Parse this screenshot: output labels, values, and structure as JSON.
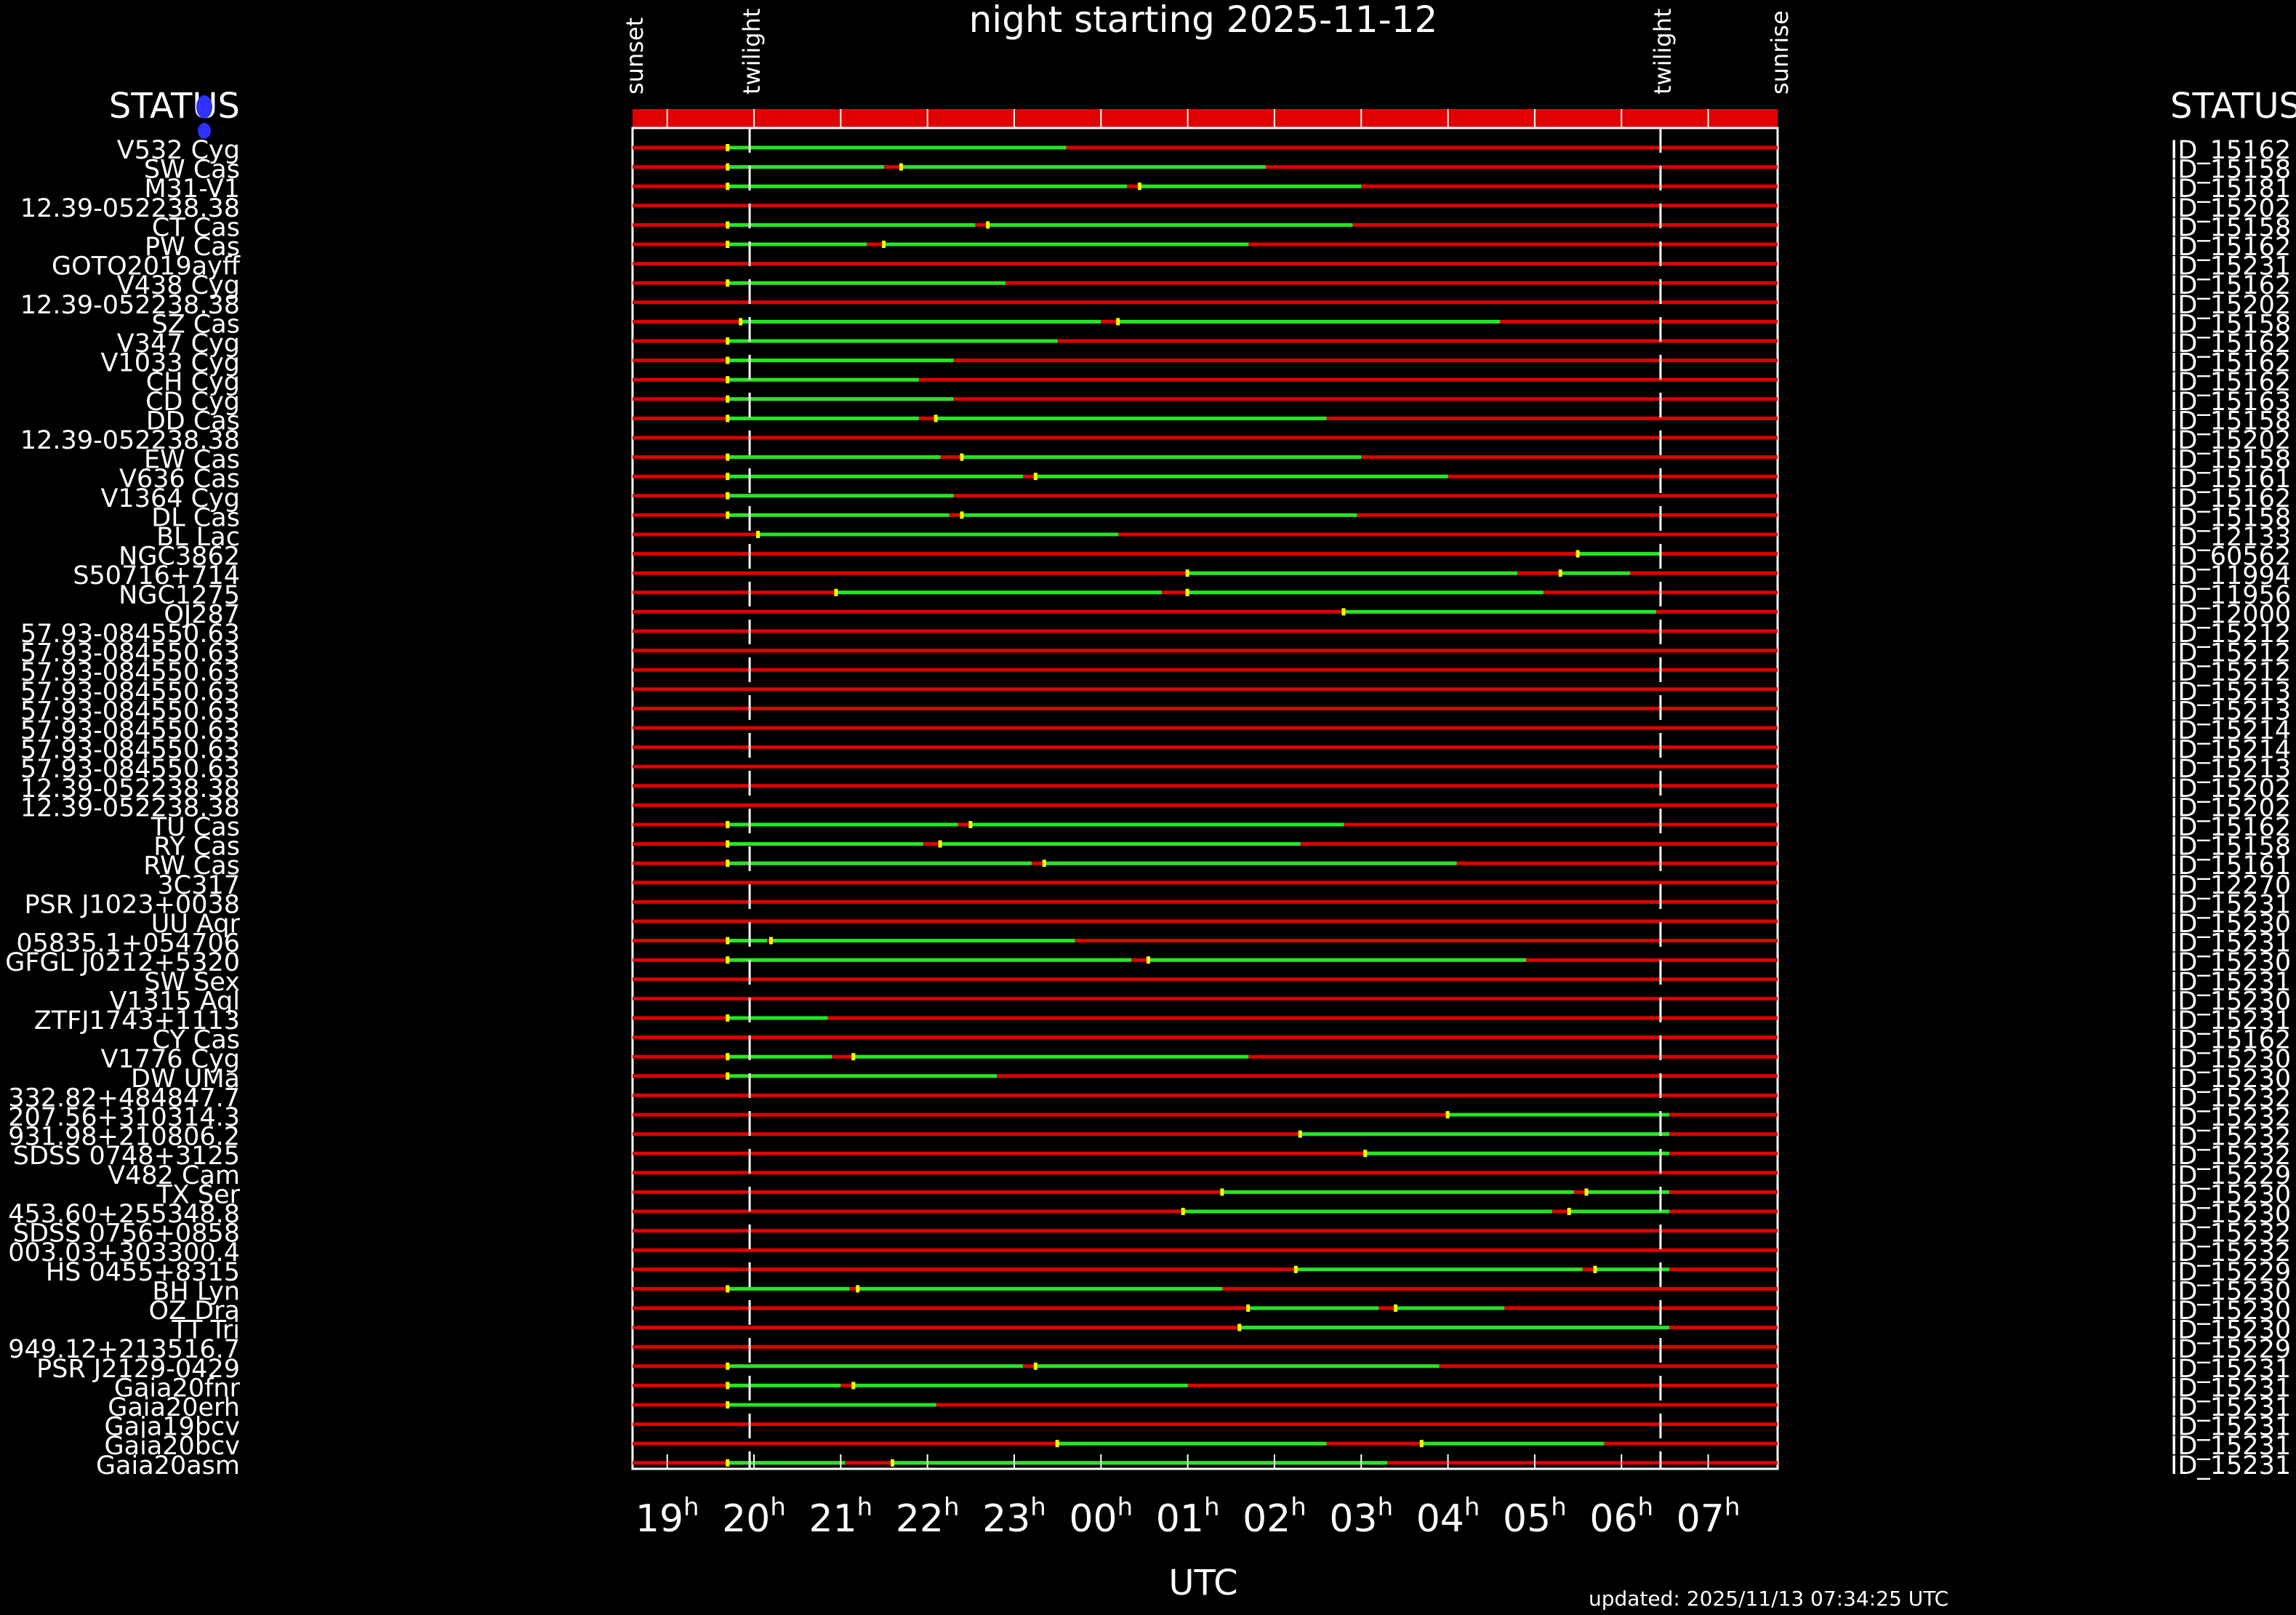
{
  "chart_data": {
    "type": "timeline",
    "title": "night starting 2025-11-12",
    "xlabel": "UTC",
    "updated": "updated: 2025/11/13 07:34:25 UTC",
    "status_left_header": "STATUS",
    "status_right_header": "STATUS",
    "x_range_hours_utc": [
      18.6,
      31.8
    ],
    "events": [
      {
        "label": "sunset",
        "hour": 18.6
      },
      {
        "label": "twilight",
        "hour": 19.95
      },
      {
        "label": "twilight",
        "hour": 30.45
      },
      {
        "label": "sunrise",
        "hour": 31.8
      }
    ],
    "ticks": [
      {
        "base": "19",
        "sup": "h",
        "hour": 19
      },
      {
        "base": "20",
        "sup": "h",
        "hour": 20
      },
      {
        "base": "21",
        "sup": "h",
        "hour": 21
      },
      {
        "base": "22",
        "sup": "h",
        "hour": 22
      },
      {
        "base": "23",
        "sup": "h",
        "hour": 23
      },
      {
        "base": "00",
        "sup": "h",
        "hour": 24
      },
      {
        "base": "01",
        "sup": "h",
        "hour": 25
      },
      {
        "base": "02",
        "sup": "h",
        "hour": 26
      },
      {
        "base": "03",
        "sup": "h",
        "hour": 27
      },
      {
        "base": "04",
        "sup": "h",
        "hour": 28
      },
      {
        "base": "05",
        "sup": "h",
        "hour": 29
      },
      {
        "base": "06",
        "sup": "h",
        "hour": 30
      },
      {
        "base": "07",
        "sup": "h",
        "hour": 31
      }
    ],
    "colors": {
      "unobservable": "#e00000",
      "observable": "#22e822",
      "marker": "#ffff00",
      "status_icon": "#3030ff"
    },
    "targets": [
      {
        "name": "V532 Cyg",
        "id": "ID_15162",
        "obs": [
          [
            19.7,
            23.6
          ]
        ]
      },
      {
        "name": "SW Cas",
        "id": "ID_15158",
        "obs": [
          [
            19.7,
            21.5
          ],
          [
            21.7,
            25.9
          ]
        ]
      },
      {
        "name": "M31-V1",
        "id": "ID_15181",
        "obs": [
          [
            19.7,
            24.3
          ],
          [
            24.45,
            27.0
          ]
        ]
      },
      {
        "name": "12.39-052238.38",
        "id": "ID_15202",
        "obs": []
      },
      {
        "name": "CT Cas",
        "id": "ID_15158",
        "obs": [
          [
            19.7,
            22.55
          ],
          [
            22.7,
            26.9
          ]
        ]
      },
      {
        "name": "PW Cas",
        "id": "ID_15162",
        "obs": [
          [
            19.7,
            21.3
          ],
          [
            21.5,
            25.7
          ]
        ]
      },
      {
        "name": "GOTO2019ayff",
        "id": "ID_15231",
        "obs": []
      },
      {
        "name": "V438 Cyg",
        "id": "ID_15162",
        "obs": [
          [
            19.7,
            22.9
          ]
        ]
      },
      {
        "name": "12.39-052238.38",
        "id": "ID_15202",
        "obs": []
      },
      {
        "name": "SZ Cas",
        "id": "ID_15158",
        "obs": [
          [
            19.85,
            24.0
          ],
          [
            24.2,
            28.6
          ]
        ]
      },
      {
        "name": "V347 Cyg",
        "id": "ID_15162",
        "obs": [
          [
            19.7,
            23.5
          ]
        ]
      },
      {
        "name": "V1033 Cyg",
        "id": "ID_15162",
        "obs": [
          [
            19.7,
            22.3
          ]
        ]
      },
      {
        "name": "CH Cyg",
        "id": "ID_15162",
        "obs": [
          [
            19.7,
            21.9
          ]
        ]
      },
      {
        "name": "CD Cyg",
        "id": "ID_15163",
        "obs": [
          [
            19.7,
            22.3
          ]
        ]
      },
      {
        "name": "DD Cas",
        "id": "ID_15158",
        "obs": [
          [
            19.7,
            21.9
          ],
          [
            22.1,
            26.6
          ]
        ]
      },
      {
        "name": "12.39-052238.38",
        "id": "ID_15202",
        "obs": []
      },
      {
        "name": "EW Cas",
        "id": "ID_15158",
        "obs": [
          [
            19.7,
            22.15
          ],
          [
            22.4,
            27.0
          ]
        ]
      },
      {
        "name": "V636 Cas",
        "id": "ID_15161",
        "obs": [
          [
            19.7,
            23.1
          ],
          [
            23.25,
            28.0
          ]
        ]
      },
      {
        "name": "V1364 Cyg",
        "id": "ID_15162",
        "obs": [
          [
            19.7,
            22.3
          ]
        ]
      },
      {
        "name": "DL Cas",
        "id": "ID_15158",
        "obs": [
          [
            19.7,
            22.25
          ],
          [
            22.4,
            26.95
          ]
        ]
      },
      {
        "name": "BL Lac",
        "id": "ID_12133",
        "obs": [
          [
            20.05,
            24.2
          ]
        ]
      },
      {
        "name": "NGC3862",
        "id": "ID_60562",
        "obs": [
          [
            29.5,
            30.45
          ]
        ]
      },
      {
        "name": "S50716+714",
        "id": "ID_11994",
        "obs": [
          [
            25.0,
            28.8
          ],
          [
            29.3,
            30.1
          ]
        ]
      },
      {
        "name": "NGC1275",
        "id": "ID_11956",
        "obs": [
          [
            20.95,
            24.7
          ],
          [
            25.0,
            29.1
          ]
        ]
      },
      {
        "name": "OJ287",
        "id": "ID_12000",
        "obs": [
          [
            26.8,
            30.4
          ]
        ]
      },
      {
        "name": "57.93-084550.63",
        "id": "ID_15212",
        "obs": []
      },
      {
        "name": "57.93-084550.63",
        "id": "ID_15212",
        "obs": []
      },
      {
        "name": "57.93-084550.63",
        "id": "ID_15212",
        "obs": []
      },
      {
        "name": "57.93-084550.63",
        "id": "ID_15213",
        "obs": []
      },
      {
        "name": "57.93-084550.63",
        "id": "ID_15213",
        "obs": []
      },
      {
        "name": "57.93-084550.63",
        "id": "ID_15214",
        "obs": []
      },
      {
        "name": "57.93-084550.63",
        "id": "ID_15214",
        "obs": []
      },
      {
        "name": "57.93-084550.63",
        "id": "ID_15213",
        "obs": []
      },
      {
        "name": "12.39-052238.38",
        "id": "ID_15202",
        "obs": []
      },
      {
        "name": "12.39-052238.38",
        "id": "ID_15202",
        "obs": []
      },
      {
        "name": "TU Cas",
        "id": "ID_15162",
        "obs": [
          [
            19.7,
            22.35
          ],
          [
            22.5,
            26.8
          ]
        ]
      },
      {
        "name": "RY Cas",
        "id": "ID_15158",
        "obs": [
          [
            19.7,
            21.95
          ],
          [
            22.15,
            26.3
          ]
        ]
      },
      {
        "name": "RW Cas",
        "id": "ID_15161",
        "obs": [
          [
            19.7,
            23.2
          ],
          [
            23.35,
            28.1
          ]
        ]
      },
      {
        "name": "3C317",
        "id": "ID_12270",
        "obs": []
      },
      {
        "name": "PSR J1023+0038",
        "id": "ID_15231",
        "obs": []
      },
      {
        "name": "UU Aqr",
        "id": "ID_15230",
        "obs": []
      },
      {
        "name": "05835.1+054706",
        "id": "ID_15231",
        "obs": [
          [
            19.7,
            20.15
          ],
          [
            20.2,
            23.7
          ]
        ]
      },
      {
        "name": "GFGL J0212+5320",
        "id": "ID_15230",
        "obs": [
          [
            19.7,
            24.35
          ],
          [
            24.55,
            28.9
          ]
        ]
      },
      {
        "name": "SW Sex",
        "id": "ID_15231",
        "obs": []
      },
      {
        "name": "V1315 Aql",
        "id": "ID_15230",
        "obs": []
      },
      {
        "name": "ZTFJ1743+1113",
        "id": "ID_15231",
        "obs": [
          [
            19.7,
            20.85
          ]
        ]
      },
      {
        "name": "CY Cas",
        "id": "ID_15162",
        "obs": []
      },
      {
        "name": "V1776 Cyg",
        "id": "ID_15230",
        "obs": [
          [
            19.7,
            20.9
          ],
          [
            21.15,
            25.7
          ]
        ]
      },
      {
        "name": "DW UMa",
        "id": "ID_15230",
        "obs": [
          [
            19.7,
            22.8
          ]
        ]
      },
      {
        "name": "332.82+484847.7",
        "id": "ID_15232",
        "obs": []
      },
      {
        "name": "207.56+310314.3",
        "id": "ID_15232",
        "obs": [
          [
            28.0,
            30.55
          ]
        ]
      },
      {
        "name": "931.98+210806.2",
        "id": "ID_15232",
        "obs": [
          [
            26.3,
            30.55
          ]
        ]
      },
      {
        "name": "SDSS 0748+3125",
        "id": "ID_15232",
        "obs": [
          [
            27.05,
            30.55
          ]
        ]
      },
      {
        "name": "V482 Cam",
        "id": "ID_15229",
        "obs": []
      },
      {
        "name": "TX Ser",
        "id": "ID_15230",
        "obs": [
          [
            25.4,
            29.45
          ],
          [
            29.6,
            30.55
          ]
        ]
      },
      {
        "name": "453.60+255348.8",
        "id": "ID_15230",
        "obs": [
          [
            24.95,
            29.2
          ],
          [
            29.4,
            30.55
          ]
        ]
      },
      {
        "name": "SDSS 0756+0858",
        "id": "ID_15232",
        "obs": []
      },
      {
        "name": "003.03+303300.4",
        "id": "ID_15232",
        "obs": []
      },
      {
        "name": "HS 0455+8315",
        "id": "ID_15229",
        "obs": [
          [
            26.25,
            29.55
          ],
          [
            29.7,
            30.55
          ]
        ]
      },
      {
        "name": "BH Lyn",
        "id": "ID_15230",
        "obs": [
          [
            19.7,
            21.1
          ],
          [
            21.2,
            25.4
          ]
        ]
      },
      {
        "name": "OZ Dra",
        "id": "ID_15230",
        "obs": [
          [
            25.7,
            27.2
          ],
          [
            27.4,
            28.65
          ]
        ]
      },
      {
        "name": "TT Tri",
        "id": "ID_15230",
        "obs": [
          [
            25.6,
            30.55
          ]
        ]
      },
      {
        "name": "949.12+213516.7",
        "id": "ID_15229",
        "obs": []
      },
      {
        "name": "PSR J2129-0429",
        "id": "ID_15231",
        "obs": [
          [
            19.7,
            23.1
          ],
          [
            23.25,
            27.9
          ]
        ]
      },
      {
        "name": "Gaia20fnr",
        "id": "ID_15231",
        "obs": [
          [
            19.7,
            21.0
          ],
          [
            21.15,
            25.0
          ]
        ]
      },
      {
        "name": "Gaia20erh",
        "id": "ID_15231",
        "obs": [
          [
            19.7,
            22.1
          ]
        ]
      },
      {
        "name": "Gaia19bcv",
        "id": "ID_15231",
        "obs": []
      },
      {
        "name": "Gaia20bcv",
        "id": "ID_15231",
        "obs": [
          [
            23.5,
            26.6
          ],
          [
            27.7,
            29.8
          ]
        ]
      },
      {
        "name": "Gaia20asm",
        "id": "ID_15231",
        "obs": [
          [
            19.7,
            21.05
          ],
          [
            21.6,
            27.3
          ]
        ]
      }
    ]
  }
}
